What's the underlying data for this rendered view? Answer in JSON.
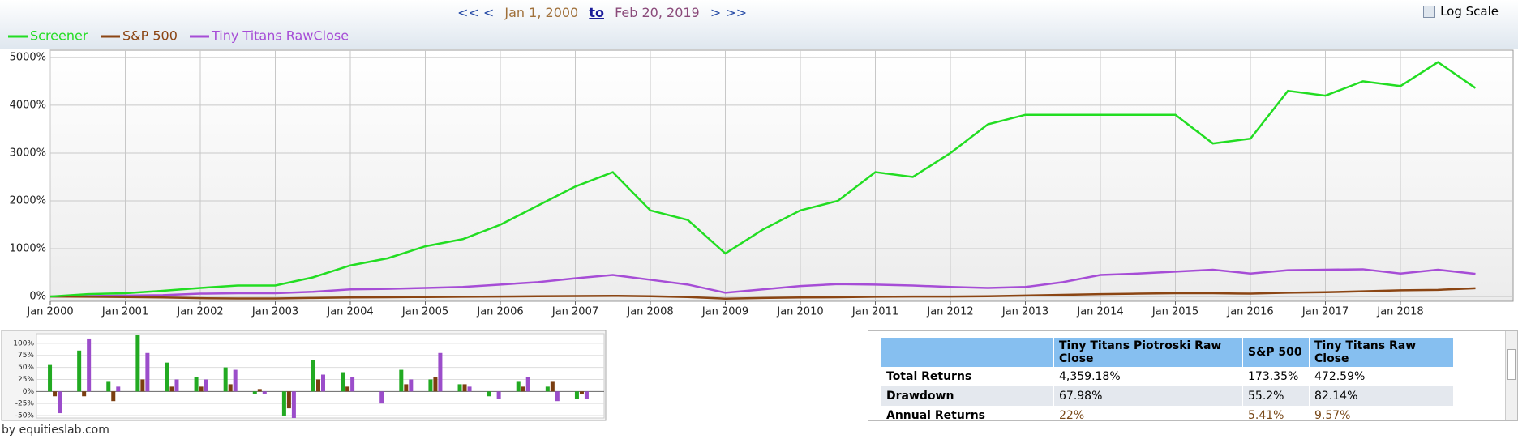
{
  "header": {
    "nav_back": "<< <",
    "start_date": "Jan 1, 2000",
    "to": "to",
    "end_date": "Feb 20, 2019",
    "nav_forward": "> >>",
    "log_scale_label": "Log Scale",
    "log_scale": false
  },
  "chart_data": [
    {
      "type": "line",
      "categories": [
        "Jan 2000",
        null,
        "Jan 2001",
        null,
        "Jan 2002",
        null,
        "Jan 2003",
        null,
        "Jan 2004",
        null,
        "Jan 2005",
        null,
        "Jan 2006",
        null,
        "Jan 2007",
        null,
        "Jan 2008",
        null,
        "Jan 2009",
        null,
        "Jan 2010",
        null,
        "Jan 2011",
        null,
        "Jan 2012",
        null,
        "Jan 2013",
        null,
        "Jan 2014",
        null,
        "Jan 2015",
        null,
        "Jan 2016",
        null,
        "Jan 2017",
        null,
        "Jan 2018",
        null,
        null
      ],
      "series": [
        {
          "name": "Screener",
          "color": "#22dd22",
          "values": [
            0,
            50,
            70,
            120,
            180,
            230,
            230,
            400,
            650,
            800,
            1050,
            1200,
            1500,
            1900,
            2300,
            2600,
            1800,
            1600,
            900,
            1400,
            1800,
            2000,
            2600,
            2500,
            3000,
            3600,
            3800,
            3800,
            3800,
            3800,
            3800,
            3200,
            3300,
            4300,
            4200,
            4500,
            4400,
            4900,
            4359
          ]
        },
        {
          "name": "S&P 500",
          "color": "#8b4513",
          "values": [
            0,
            -5,
            -10,
            -20,
            -35,
            -40,
            -40,
            -30,
            -20,
            -15,
            -10,
            -5,
            0,
            5,
            10,
            15,
            5,
            -10,
            -45,
            -30,
            -20,
            -15,
            -5,
            0,
            0,
            5,
            20,
            35,
            50,
            60,
            70,
            70,
            60,
            80,
            90,
            110,
            130,
            140,
            173
          ]
        },
        {
          "name": "Tiny Titans RawClose",
          "color": "#a64dd6",
          "values": [
            0,
            10,
            20,
            30,
            60,
            70,
            70,
            100,
            150,
            160,
            180,
            200,
            250,
            300,
            380,
            450,
            350,
            250,
            80,
            150,
            220,
            260,
            250,
            230,
            200,
            180,
            200,
            300,
            450,
            480,
            520,
            560,
            480,
            550,
            560,
            570,
            480,
            560,
            473
          ]
        }
      ],
      "ylim": [
        -100,
        5150
      ],
      "yticks": [
        {
          "value": 0,
          "label": "0%"
        },
        {
          "value": 1000,
          "label": "1000%"
        },
        {
          "value": 2000,
          "label": "2000%"
        },
        {
          "value": 3000,
          "label": "3000%"
        },
        {
          "value": 4000,
          "label": "4000%"
        },
        {
          "value": 5000,
          "label": "5000%"
        }
      ],
      "grid": true
    },
    {
      "type": "bar",
      "categories": [
        null,
        null,
        null,
        null,
        null,
        null,
        null,
        null,
        null,
        null,
        null,
        null,
        null,
        null,
        null,
        null,
        null,
        null,
        null
      ],
      "series": [
        {
          "color": "#22aa22",
          "values": [
            55,
            85,
            20,
            118,
            60,
            30,
            50,
            -5,
            -50,
            65,
            40,
            0,
            45,
            25,
            15,
            -10,
            20,
            10,
            -15
          ]
        },
        {
          "color": "#7a3e10",
          "values": [
            -10,
            -10,
            -20,
            25,
            10,
            10,
            15,
            5,
            -35,
            25,
            10,
            0,
            15,
            30,
            15,
            0,
            10,
            20,
            -5
          ]
        },
        {
          "color": "#9b4dca",
          "values": [
            -45,
            110,
            10,
            80,
            25,
            25,
            45,
            -5,
            -55,
            35,
            30,
            -25,
            25,
            80,
            10,
            -15,
            30,
            -20,
            -15
          ]
        }
      ],
      "ylim": [
        -55,
        120
      ],
      "yticks": [
        {
          "value": 100,
          "label": "100%"
        },
        {
          "value": 75,
          "label": "75%"
        },
        {
          "value": 50,
          "label": "50%"
        },
        {
          "value": 25,
          "label": "25%"
        },
        {
          "value": 0,
          "label": "0%"
        },
        {
          "value": -25,
          "label": "-25%"
        },
        {
          "value": -50,
          "label": "-50%"
        }
      ],
      "grid": true
    }
  ],
  "table": {
    "columns": [
      "Tiny Titans Piotroski Raw Close",
      "S&P 500",
      "Tiny Titans Raw Close"
    ],
    "rows": [
      [
        "Total Returns",
        "4,359.18%",
        "173.35%",
        "472.59%"
      ],
      [
        "Drawdown",
        "67.98%",
        "55.2%",
        "82.14%"
      ],
      [
        "Annual Returns",
        "22%",
        "5.41%",
        "9.57%"
      ]
    ]
  },
  "footer": "by equitieslab.com"
}
